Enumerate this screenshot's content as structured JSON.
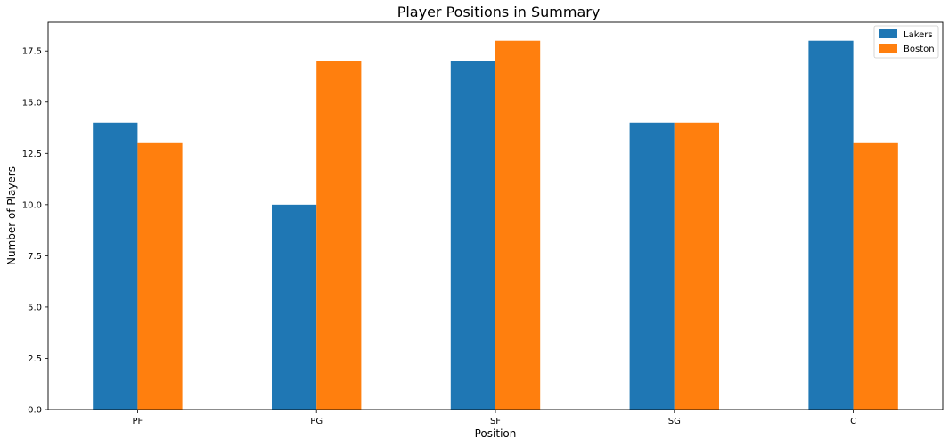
{
  "chart_data": {
    "type": "bar",
    "title": "Player Positions in Summary",
    "xlabel": "Position",
    "ylabel": "Number of Players",
    "categories": [
      "PF",
      "PG",
      "SF",
      "SG",
      "C"
    ],
    "series": [
      {
        "name": "Lakers",
        "values": [
          14,
          10,
          17,
          14,
          18
        ],
        "color": "#1f77b4"
      },
      {
        "name": "Boston",
        "values": [
          13,
          17,
          18,
          14,
          13
        ],
        "color": "#ff7f0e"
      }
    ],
    "ylim": [
      0,
      18.9
    ],
    "yticks": [
      "0.0",
      "2.5",
      "5.0",
      "7.5",
      "10.0",
      "12.5",
      "15.0",
      "17.5"
    ],
    "grid": false,
    "legend_position": "top-right"
  }
}
